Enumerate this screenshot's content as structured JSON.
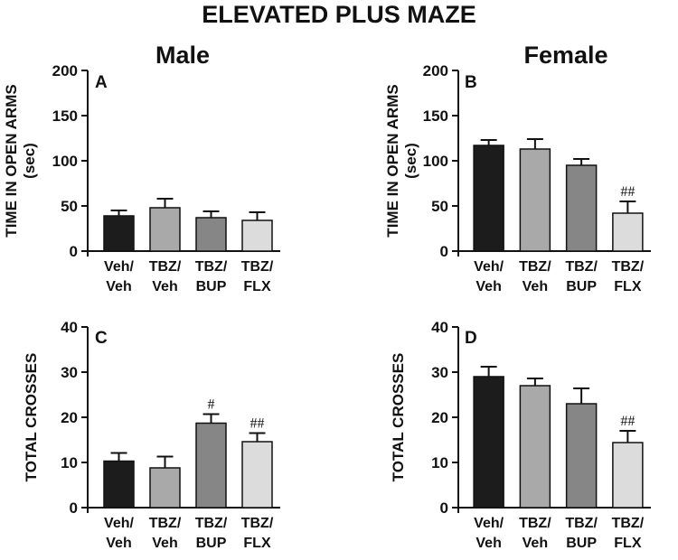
{
  "figure": {
    "title": "ELEVATED PLUS MAZE",
    "column_titles": [
      "Male",
      "Female"
    ]
  },
  "colors": {
    "bars": [
      "#1c1c1c",
      "#a9a9a9",
      "#868686",
      "#dcdcdc"
    ],
    "axis": "#111111"
  },
  "chart_data": [
    {
      "panel": "A",
      "type": "bar",
      "ylabel_lines": [
        "TIME IN OPEN ARMS",
        "(sec)"
      ],
      "ylim": [
        0,
        200
      ],
      "yticks": [
        0,
        50,
        100,
        150,
        200
      ],
      "categories": [
        [
          "Veh/",
          "Veh"
        ],
        [
          "TBZ/",
          "Veh"
        ],
        [
          "TBZ/",
          "BUP"
        ],
        [
          "TBZ/",
          "FLX"
        ]
      ],
      "values": [
        39,
        48,
        37,
        34
      ],
      "errors": [
        6,
        10,
        7,
        9
      ],
      "annotations": [
        "",
        "",
        "",
        ""
      ]
    },
    {
      "panel": "B",
      "type": "bar",
      "ylabel_lines": [
        "TIME IN OPEN ARMS",
        "(sec)"
      ],
      "ylim": [
        0,
        200
      ],
      "yticks": [
        0,
        50,
        100,
        150,
        200
      ],
      "categories": [
        [
          "Veh/",
          "Veh"
        ],
        [
          "TBZ/",
          "Veh"
        ],
        [
          "TBZ/",
          "BUP"
        ],
        [
          "TBZ/",
          "FLX"
        ]
      ],
      "values": [
        117,
        113,
        95,
        42
      ],
      "errors": [
        6,
        11,
        7,
        13
      ],
      "annotations": [
        "",
        "",
        "",
        "##"
      ]
    },
    {
      "panel": "C",
      "type": "bar",
      "ylabel_lines": [
        "TOTAL CROSSES"
      ],
      "ylim": [
        0,
        40
      ],
      "yticks": [
        0,
        10,
        20,
        30,
        40
      ],
      "categories": [
        [
          "Veh/",
          "Veh"
        ],
        [
          "TBZ/",
          "Veh"
        ],
        [
          "TBZ/",
          "BUP"
        ],
        [
          "TBZ/",
          "FLX"
        ]
      ],
      "values": [
        10.3,
        8.8,
        18.7,
        14.6
      ],
      "errors": [
        1.8,
        2.5,
        2.0,
        1.9
      ],
      "annotations": [
        "",
        "",
        "#",
        "##"
      ]
    },
    {
      "panel": "D",
      "type": "bar",
      "ylabel_lines": [
        "TOTAL CROSSES"
      ],
      "ylim": [
        0,
        40
      ],
      "yticks": [
        0,
        10,
        20,
        30,
        40
      ],
      "categories": [
        [
          "Veh/",
          "Veh"
        ],
        [
          "TBZ/",
          "Veh"
        ],
        [
          "TBZ/",
          "BUP"
        ],
        [
          "TBZ/",
          "FLX"
        ]
      ],
      "values": [
        29.0,
        27.0,
        23.0,
        14.4
      ],
      "errors": [
        2.2,
        1.6,
        3.4,
        2.6
      ],
      "annotations": [
        "",
        "",
        "",
        "##"
      ]
    }
  ]
}
